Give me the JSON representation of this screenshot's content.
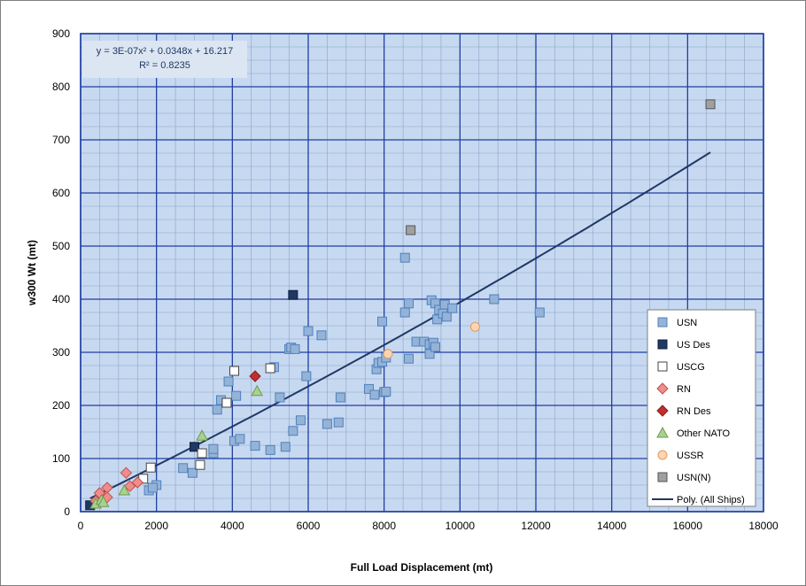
{
  "chart_data": {
    "type": "scatter",
    "title": "",
    "xlabel": "Full Load Displacement (mt)",
    "ylabel": "w300 Wt (mt)",
    "xlim": [
      0,
      18000
    ],
    "ylim": [
      0,
      900
    ],
    "xticks": [
      0,
      2000,
      4000,
      6000,
      8000,
      10000,
      12000,
      14000,
      16000,
      18000
    ],
    "yticks": [
      0,
      100,
      200,
      300,
      400,
      500,
      600,
      700,
      800,
      900
    ],
    "x_minor_step": 500,
    "y_minor_step": 25,
    "grid": true,
    "legend_position": "right",
    "plot_background": "#c7d9f1",
    "major_grid_color": "#1f3fa0",
    "minor_grid_color": "#8aa3c4",
    "equation_lines": [
      "y = 3E-07x² + 0.0348x + 16.217",
      "R² = 0.8235"
    ],
    "series": [
      {
        "name": "USN",
        "marker": "square",
        "fill": "#95b3d7",
        "stroke": "#4f81bd",
        "points": [
          [
            1800,
            40
          ],
          [
            2000,
            50
          ],
          [
            1900,
            45
          ],
          [
            2700,
            82
          ],
          [
            2950,
            73
          ],
          [
            3500,
            110
          ],
          [
            3500,
            118
          ],
          [
            3600,
            192
          ],
          [
            3700,
            210
          ],
          [
            3850,
            205
          ],
          [
            3900,
            245
          ],
          [
            4050,
            133
          ],
          [
            4100,
            218
          ],
          [
            4200,
            137
          ],
          [
            4600,
            124
          ],
          [
            5000,
            116
          ],
          [
            5100,
            272
          ],
          [
            5250,
            215
          ],
          [
            5400,
            122
          ],
          [
            5500,
            306
          ],
          [
            5550,
            309
          ],
          [
            5600,
            152
          ],
          [
            5650,
            306
          ],
          [
            5800,
            172
          ],
          [
            5950,
            255
          ],
          [
            6000,
            340
          ],
          [
            6350,
            332
          ],
          [
            6500,
            165
          ],
          [
            6800,
            168
          ],
          [
            6850,
            215
          ],
          [
            7600,
            231
          ],
          [
            7750,
            220
          ],
          [
            7800,
            268
          ],
          [
            7850,
            280
          ],
          [
            7950,
            358
          ],
          [
            7950,
            282
          ],
          [
            8000,
            225
          ],
          [
            8050,
            226
          ],
          [
            8050,
            290
          ],
          [
            8550,
            375
          ],
          [
            8550,
            478
          ],
          [
            8650,
            392
          ],
          [
            8650,
            288
          ],
          [
            8850,
            320
          ],
          [
            9050,
            320
          ],
          [
            9200,
            315
          ],
          [
            9200,
            297
          ],
          [
            9250,
            398
          ],
          [
            9300,
            318
          ],
          [
            9350,
            310
          ],
          [
            9350,
            392
          ],
          [
            9400,
            362
          ],
          [
            9450,
            380
          ],
          [
            9550,
            373
          ],
          [
            9600,
            390
          ],
          [
            9650,
            367
          ],
          [
            9800,
            383
          ],
          [
            10900,
            400
          ],
          [
            12100,
            375
          ]
        ]
      },
      {
        "name": "US Des",
        "marker": "square",
        "fill": "#1f3864",
        "stroke": "#0f1f3c",
        "points": [
          [
            250,
            12
          ],
          [
            3000,
            122
          ],
          [
            5600,
            408
          ]
        ]
      },
      {
        "name": "USCG",
        "marker": "square",
        "fill": "#ffffff",
        "stroke": "#444444",
        "points": [
          [
            1850,
            83
          ],
          [
            1650,
            62
          ],
          [
            3150,
            88
          ],
          [
            3200,
            110
          ],
          [
            3850,
            205
          ],
          [
            4050,
            265
          ],
          [
            5000,
            270
          ]
        ]
      },
      {
        "name": "RN",
        "marker": "diamond",
        "fill": "#f08c8c",
        "stroke": "#c0504d",
        "points": [
          [
            400,
            20
          ],
          [
            500,
            35
          ],
          [
            700,
            45
          ],
          [
            700,
            27
          ],
          [
            1200,
            73
          ],
          [
            1300,
            48
          ],
          [
            1500,
            55
          ]
        ]
      },
      {
        "name": "RN Des",
        "marker": "diamond",
        "fill": "#c0302d",
        "stroke": "#8b1a1a",
        "points": [
          [
            4600,
            255
          ]
        ]
      },
      {
        "name": "Other NATO",
        "marker": "triangle",
        "fill": "#a9d18e",
        "stroke": "#6f9a4f",
        "points": [
          [
            400,
            15
          ],
          [
            550,
            22
          ],
          [
            600,
            18
          ],
          [
            1150,
            40
          ],
          [
            3200,
            143
          ],
          [
            4650,
            227
          ]
        ]
      },
      {
        "name": "USSR",
        "marker": "circle",
        "fill": "#fcd5b4",
        "stroke": "#e59a5a",
        "points": [
          [
            8100,
            297
          ],
          [
            10400,
            348
          ]
        ]
      },
      {
        "name": "USN(N)",
        "marker": "square",
        "fill": "#a0a0a0",
        "stroke": "#555555",
        "points": [
          [
            8700,
            530
          ],
          [
            16600,
            767
          ]
        ]
      }
    ],
    "trendline": {
      "name": "Poly. (All Ships)",
      "type": "polynomial",
      "coefficients": {
        "a": 3e-07,
        "b": 0.0348,
        "c": 16.217
      },
      "x_range": [
        250,
        16600
      ],
      "color": "#1f3864"
    }
  }
}
